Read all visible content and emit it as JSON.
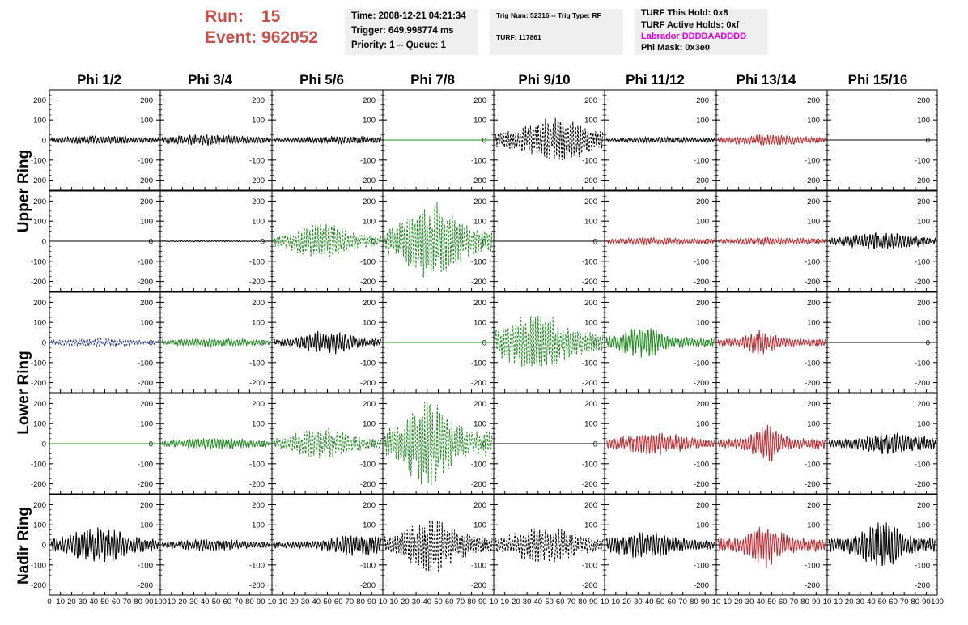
{
  "header": {
    "run_label": "Run:",
    "run_value": "15",
    "event_label": "Event:",
    "event_value": "962052",
    "time_line": "Time: 2008-12-21 04:21:34",
    "trigger_line": "Trigger: 649.998774 ms",
    "priority_line": "Priority: 1 -- Queue: 1",
    "trig_line": "Trig Num: 52316 -- Trig Type: RF",
    "turf_line": "TURF: 117861",
    "turf_hold_line": "TURF This Hold: 0x8",
    "turf_active_line": "TURF Active Holds: 0xf",
    "labrador_line": "Labrador DDDDAADDDD",
    "phi_mask_line": "Phi Mask: 0x3e0"
  },
  "colors": {
    "run_text": "#c8504b",
    "labrador_text": "#e000e0",
    "info_bg": "#efefef",
    "trace_black": "#000000",
    "trace_green": "#1e8a1e",
    "trace_red": "#c0282d",
    "trace_blue": "#1f2a8c"
  },
  "chart_data": {
    "type": "line",
    "grid": false,
    "columns": [
      "Phi 1/2",
      "Phi 3/4",
      "Phi 5/6",
      "Phi 7/8",
      "Phi 9/10",
      "Phi 11/12",
      "Phi 13/14",
      "Phi 15/16"
    ],
    "row_groups": [
      {
        "label": "Upper Ring",
        "rows": [
          0,
          1
        ]
      },
      {
        "label": "Lower Ring",
        "rows": [
          2,
          3
        ]
      },
      {
        "label": "Nadir Ring",
        "rows": [
          4
        ]
      }
    ],
    "ylim": [
      -250,
      250
    ],
    "y_ticks": [
      "200",
      "100",
      "0",
      "-100",
      "-200"
    ],
    "xlim": [
      0,
      100
    ],
    "x_tick_labels_first": [
      "0",
      "10",
      "20",
      "30",
      "40",
      "50",
      "60",
      "70",
      "80",
      "90",
      "100"
    ],
    "x_tick_labels_rest": [
      "10",
      "20",
      "30",
      "40",
      "50",
      "60",
      "70",
      "80",
      "90",
      "10"
    ],
    "x_tick_labels_last": [
      "10",
      "20",
      "30",
      "40",
      "50",
      "60",
      "70",
      "80",
      "90",
      "100"
    ],
    "panels": [
      [
        {
          "color": "black",
          "style": "solid",
          "peak": 22,
          "center": 45,
          "width": 45,
          "freq": 1.0,
          "seed": 1
        },
        {
          "color": "black",
          "style": "solid",
          "peak": 28,
          "center": 45,
          "width": 45,
          "freq": 1.0,
          "seed": 2
        },
        {
          "color": "black",
          "style": "solid",
          "peak": 20,
          "center": 60,
          "width": 45,
          "freq": 1.0,
          "seed": 3
        },
        {
          "color": "green",
          "style": "flat",
          "peak": 0
        },
        {
          "color": "black",
          "style": "dashed",
          "peak": 110,
          "center": 55,
          "width": 35,
          "freq": 1.1,
          "seed": 5
        },
        {
          "color": "black",
          "style": "solid",
          "peak": 15,
          "center": 50,
          "width": 45,
          "freq": 1.0,
          "seed": 6
        },
        {
          "color": "red",
          "style": "solid",
          "peak": 28,
          "center": 45,
          "width": 40,
          "freq": 1.0,
          "seed": 7
        },
        {
          "color": "black",
          "style": "flat",
          "peak": 0
        }
      ],
      [
        {
          "color": "black",
          "style": "flat",
          "peak": 0
        },
        {
          "color": "black",
          "style": "solid",
          "peak": 4,
          "center": 45,
          "width": 45,
          "freq": 1.0,
          "seed": 9
        },
        {
          "color": "green",
          "style": "dashed",
          "peak": 85,
          "center": 45,
          "width": 30,
          "freq": 1.0,
          "seed": 10
        },
        {
          "color": "green",
          "style": "dashed",
          "peak": 190,
          "center": 45,
          "width": 28,
          "freq": 1.1,
          "seed": 11
        },
        {
          "color": "black",
          "style": "flat",
          "peak": 0
        },
        {
          "color": "red",
          "style": "solid",
          "peak": 20,
          "center": 50,
          "width": 45,
          "freq": 1.0,
          "seed": 13
        },
        {
          "color": "red",
          "style": "solid",
          "peak": 20,
          "center": 50,
          "width": 45,
          "freq": 1.0,
          "seed": 14
        },
        {
          "color": "black",
          "style": "solid",
          "peak": 45,
          "center": 50,
          "width": 35,
          "freq": 1.0,
          "seed": 15
        }
      ],
      [
        {
          "color": "blue",
          "style": "dashed",
          "peak": 22,
          "center": 45,
          "width": 45,
          "freq": 1.0,
          "seed": 16
        },
        {
          "color": "green",
          "style": "solid",
          "peak": 22,
          "center": 50,
          "width": 45,
          "freq": 1.0,
          "seed": 17
        },
        {
          "color": "black",
          "style": "solid",
          "peak": 60,
          "center": 50,
          "width": 25,
          "freq": 1.0,
          "seed": 18
        },
        {
          "color": "green",
          "style": "flat",
          "peak": 0
        },
        {
          "color": "green",
          "style": "dashed",
          "peak": 140,
          "center": 38,
          "width": 35,
          "freq": 1.1,
          "seed": 20
        },
        {
          "color": "green",
          "style": "solid",
          "peak": 80,
          "center": 33,
          "width": 22,
          "freq": 1.0,
          "seed": 21
        },
        {
          "color": "red",
          "style": "solid",
          "peak": 65,
          "center": 40,
          "width": 14,
          "freq": 1.0,
          "seed": 22
        },
        {
          "color": "black",
          "style": "flat",
          "peak": 0
        }
      ],
      [
        {
          "color": "green",
          "style": "flat",
          "peak": 0
        },
        {
          "color": "green",
          "style": "solid",
          "peak": 28,
          "center": 50,
          "width": 45,
          "freq": 1.0,
          "seed": 25
        },
        {
          "color": "green",
          "style": "dashed",
          "peak": 80,
          "center": 45,
          "width": 28,
          "freq": 1.0,
          "seed": 26
        },
        {
          "color": "green",
          "style": "dashed",
          "peak": 230,
          "center": 40,
          "width": 22,
          "freq": 1.1,
          "seed": 27
        },
        {
          "color": "black",
          "style": "flat",
          "peak": 0
        },
        {
          "color": "red",
          "style": "solid",
          "peak": 55,
          "center": 45,
          "width": 35,
          "freq": 1.0,
          "seed": 29
        },
        {
          "color": "red",
          "style": "solid",
          "peak": 95,
          "center": 45,
          "width": 14,
          "freq": 1.0,
          "seed": 30
        },
        {
          "color": "black",
          "style": "solid",
          "peak": 55,
          "center": 60,
          "width": 35,
          "freq": 1.0,
          "seed": 31
        }
      ],
      [
        {
          "color": "black",
          "style": "solid",
          "peak": 90,
          "center": 45,
          "width": 30,
          "freq": 1.0,
          "seed": 32
        },
        {
          "color": "black",
          "style": "solid",
          "peak": 30,
          "center": 45,
          "width": 40,
          "freq": 1.0,
          "seed": 33
        },
        {
          "color": "black",
          "style": "solid",
          "peak": 55,
          "center": 80,
          "width": 30,
          "freq": 1.0,
          "seed": 34
        },
        {
          "color": "black",
          "style": "dashed",
          "peak": 140,
          "center": 45,
          "width": 25,
          "freq": 1.1,
          "seed": 35
        },
        {
          "color": "black",
          "style": "dashed",
          "peak": 90,
          "center": 45,
          "width": 35,
          "freq": 1.0,
          "seed": 36
        },
        {
          "color": "black",
          "style": "solid",
          "peak": 70,
          "center": 35,
          "width": 30,
          "freq": 1.0,
          "seed": 37
        },
        {
          "color": "red",
          "style": "solid",
          "peak": 115,
          "center": 45,
          "width": 16,
          "freq": 1.0,
          "seed": 38
        },
        {
          "color": "black",
          "style": "solid",
          "peak": 120,
          "center": 50,
          "width": 22,
          "freq": 1.0,
          "seed": 39
        }
      ]
    ]
  }
}
